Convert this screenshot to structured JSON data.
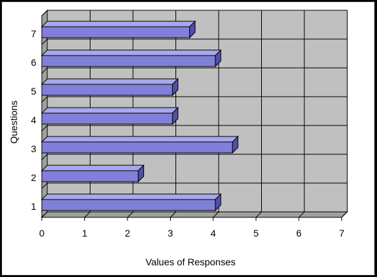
{
  "chart_data": {
    "type": "bar",
    "orientation": "horizontal",
    "three_d": true,
    "categories": [
      "1",
      "2",
      "3",
      "4",
      "5",
      "6",
      "7"
    ],
    "values": [
      4.05,
      2.25,
      4.45,
      3.05,
      3.05,
      4.05,
      3.45
    ],
    "xlabel": "Values of Responses",
    "ylabel": "Questions",
    "xlim": [
      0,
      7
    ],
    "x_ticks": [
      "0",
      "1",
      "2",
      "3",
      "4",
      "5",
      "6",
      "7"
    ],
    "grid": true,
    "legend": "none",
    "colors": {
      "bar_front": "#8080d8",
      "bar_top": "#a8a8ec",
      "bar_side": "#5050a8",
      "wall": "#c0c0c0",
      "floor": "#a0a0a0",
      "gridline": "#000000"
    }
  }
}
